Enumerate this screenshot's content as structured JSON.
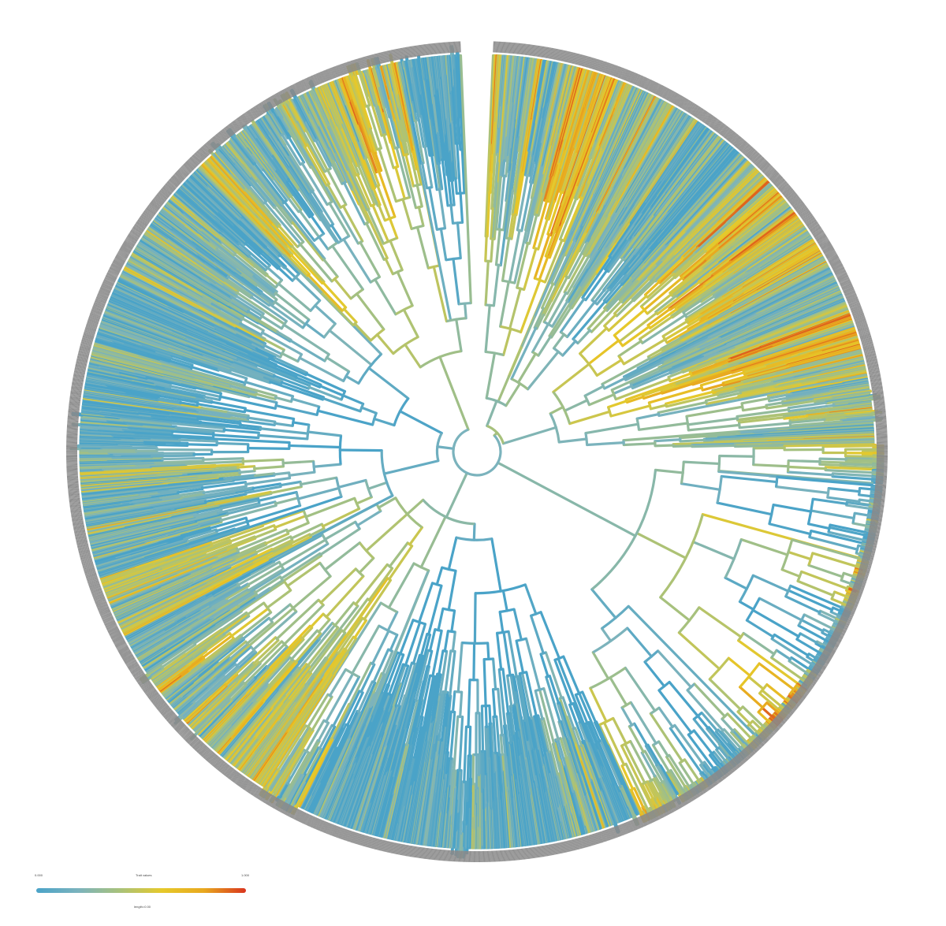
{
  "figure": {
    "type": "circular-phylogenetic-tree",
    "colormap": [
      "#4aa3c8",
      "#7bb3bd",
      "#a9c27a",
      "#e6c92a",
      "#e8a81f",
      "#d9351e"
    ],
    "branch_color_note": "",
    "tip_label_text": ""
  },
  "legend": {
    "min_label": "0.000",
    "mid_label": "Trait values",
    "max_label": "1.000",
    "caption": "length=0.00",
    "gradient_stops": [
      "#4aa3c8",
      "#7bb3bd",
      "#a9c27a",
      "#e6c92a",
      "#e8a81f",
      "#d9351e"
    ]
  }
}
